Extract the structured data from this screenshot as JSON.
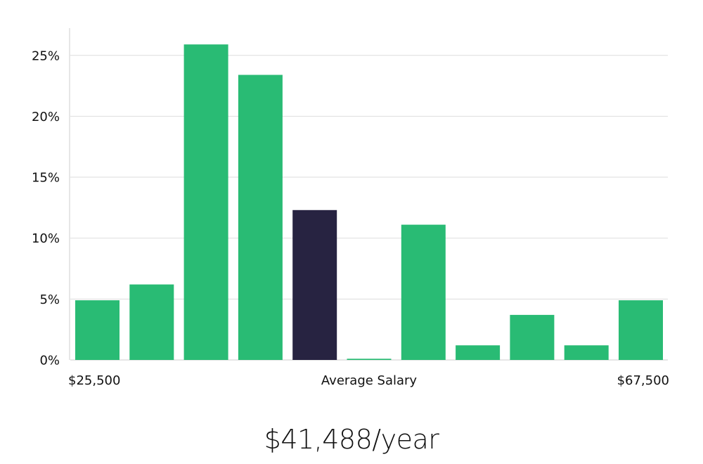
{
  "chart_data": {
    "type": "bar",
    "ylim": [
      0,
      27
    ],
    "yticks": [
      0,
      5,
      10,
      15,
      20,
      25
    ],
    "ytick_suffix": "%",
    "values": [
      4.9,
      6.2,
      25.9,
      23.4,
      12.3,
      0.1,
      11.1,
      1.2,
      3.7,
      1.2,
      4.9
    ],
    "highlight_index": 4,
    "x_labels": {
      "left": "$25,500",
      "center": "Average Salary",
      "right": "$67,500"
    },
    "grid": true,
    "colors": {
      "bar": "#29bb74",
      "highlight": "#272341",
      "grid": "#dddddd",
      "axis": "#cccccc"
    }
  },
  "average_salary_text": "$41,488/year"
}
